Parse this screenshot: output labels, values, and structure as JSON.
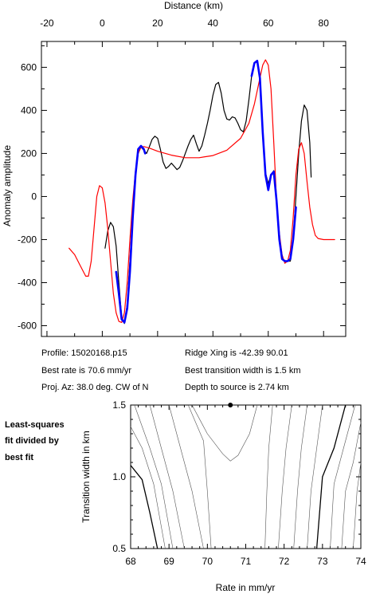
{
  "chart_data": [
    {
      "type": "line",
      "xlabel": "Distance (km)",
      "ylabel": "Anomaly amplitude",
      "xlim": [
        -22,
        88
      ],
      "ylim": [
        -650,
        720
      ],
      "x_ticks": [
        -20,
        0,
        20,
        40,
        60,
        80
      ],
      "y_ticks": [
        -600,
        -400,
        -200,
        0,
        200,
        400,
        600
      ],
      "x_axis_position": "top",
      "grid": false,
      "series": [
        {
          "color": "#000000",
          "points": [
            [
              1,
              -240
            ],
            [
              2,
              -160
            ],
            [
              3,
              -120
            ],
            [
              4,
              -140
            ],
            [
              5,
              -230
            ],
            [
              6,
              -400
            ],
            [
              7,
              -560
            ],
            [
              8,
              -590
            ],
            [
              9,
              -500
            ],
            [
              10,
              -300
            ],
            [
              11,
              -80
            ],
            [
              12,
              100
            ],
            [
              13,
              200
            ],
            [
              14,
              230
            ],
            [
              15,
              215
            ],
            [
              16,
              200
            ],
            [
              17,
              230
            ],
            [
              18,
              265
            ],
            [
              19,
              280
            ],
            [
              20,
              270
            ],
            [
              21,
              220
            ],
            [
              22,
              160
            ],
            [
              23,
              130
            ],
            [
              24,
              140
            ],
            [
              25,
              155
            ],
            [
              26,
              140
            ],
            [
              27,
              125
            ],
            [
              28,
              135
            ],
            [
              29,
              165
            ],
            [
              30,
              200
            ],
            [
              31,
              235
            ],
            [
              32,
              265
            ],
            [
              33,
              285
            ],
            [
              34,
              245
            ],
            [
              35,
              210
            ],
            [
              36,
              235
            ],
            [
              37,
              285
            ],
            [
              38,
              340
            ],
            [
              39,
              400
            ],
            [
              40,
              470
            ],
            [
              41,
              520
            ],
            [
              42,
              530
            ],
            [
              43,
              480
            ],
            [
              44,
              400
            ],
            [
              45,
              360
            ],
            [
              46,
              355
            ],
            [
              47,
              370
            ],
            [
              48,
              365
            ],
            [
              49,
              340
            ],
            [
              50,
              310
            ],
            [
              51,
              300
            ],
            [
              52,
              350
            ],
            [
              53,
              450
            ],
            [
              54,
              560
            ],
            [
              55,
              620
            ],
            [
              56,
              630
            ],
            [
              57,
              560
            ],
            [
              58,
              300
            ],
            [
              59,
              110
            ],
            [
              60,
              60
            ],
            [
              61,
              100
            ],
            [
              62,
              120
            ],
            [
              63,
              -20
            ],
            [
              64,
              -200
            ],
            [
              65,
              -290
            ],
            [
              66,
              -300
            ],
            [
              67,
              -300
            ],
            [
              68,
              -300
            ],
            [
              69,
              -200
            ],
            [
              70,
              0
            ],
            [
              71,
              200
            ],
            [
              72,
              350
            ],
            [
              73,
              425
            ],
            [
              74,
              400
            ],
            [
              75,
              250
            ],
            [
              75.5,
              90
            ]
          ]
        },
        {
          "color": "#ff0000",
          "points": [
            [
              -12,
              -240
            ],
            [
              -10,
              -270
            ],
            [
              -8,
              -320
            ],
            [
              -6,
              -370
            ],
            [
              -5,
              -370
            ],
            [
              -4,
              -300
            ],
            [
              -3,
              -150
            ],
            [
              -2,
              0
            ],
            [
              -1,
              50
            ],
            [
              0,
              40
            ],
            [
              1,
              -30
            ],
            [
              2,
              -150
            ],
            [
              3,
              -300
            ],
            [
              4,
              -450
            ],
            [
              5,
              -540
            ],
            [
              6,
              -580
            ],
            [
              7,
              -585
            ],
            [
              8,
              -540
            ],
            [
              9,
              -400
            ],
            [
              10,
              -200
            ],
            [
              11,
              -20
            ],
            [
              12,
              120
            ],
            [
              13,
              200
            ],
            [
              14,
              230
            ],
            [
              15,
              232
            ],
            [
              17,
              225
            ],
            [
              20,
              210
            ],
            [
              25,
              192
            ],
            [
              30,
              180
            ],
            [
              35,
              180
            ],
            [
              40,
              190
            ],
            [
              45,
              215
            ],
            [
              50,
              270
            ],
            [
              53,
              340
            ],
            [
              55,
              430
            ],
            [
              57,
              550
            ],
            [
              58,
              610
            ],
            [
              59,
              635
            ],
            [
              60,
              610
            ],
            [
              61,
              500
            ],
            [
              62,
              250
            ],
            [
              63,
              -20
            ],
            [
              64,
              -170
            ],
            [
              65,
              -270
            ],
            [
              66,
              -310
            ],
            [
              67,
              -300
            ],
            [
              68,
              -250
            ],
            [
              69,
              -100
            ],
            [
              70,
              100
            ],
            [
              71,
              220
            ],
            [
              72,
              250
            ],
            [
              73,
              200
            ],
            [
              74,
              70
            ],
            [
              75,
              -50
            ],
            [
              76,
              -130
            ],
            [
              77,
              -180
            ],
            [
              78,
              -195
            ],
            [
              80,
              -200
            ],
            [
              84,
              -200
            ]
          ]
        },
        {
          "color": "#0000ff",
          "points": [
            [
              5,
              -350
            ],
            [
              6,
              -450
            ],
            [
              7,
              -570
            ],
            [
              8,
              -585
            ],
            [
              9,
              -520
            ],
            [
              10,
              -350
            ],
            [
              11,
              -100
            ],
            [
              12,
              100
            ],
            [
              13,
              220
            ],
            [
              14,
              235
            ],
            [
              15,
              220
            ],
            [
              15.5,
              200
            ]
          ]
        },
        {
          "color": "#0000ff",
          "points": [
            [
              54,
              560
            ],
            [
              55,
              620
            ],
            [
              56,
              630
            ],
            [
              57,
              550
            ],
            [
              58,
              300
            ],
            [
              59,
              100
            ],
            [
              60,
              30
            ],
            [
              61,
              100
            ],
            [
              62,
              115
            ],
            [
              63,
              -20
            ],
            [
              64,
              -200
            ],
            [
              65,
              -290
            ],
            [
              66,
              -300
            ],
            [
              67,
              -300
            ],
            [
              68,
              -290
            ],
            [
              69,
              -200
            ],
            [
              70,
              -50
            ]
          ]
        }
      ]
    },
    {
      "type": "contour",
      "xlabel": "Rate in mm/yr",
      "ylabel": "Transition width in km",
      "xlim": [
        68,
        74
      ],
      "ylim": [
        0.5,
        1.5
      ],
      "x_ticks": [
        68,
        69,
        70,
        71,
        72,
        73,
        74
      ],
      "y_ticks": [
        0.5,
        1.0,
        1.5
      ],
      "y_tick_labels": [
        "0.5",
        "1.0",
        "1.5"
      ],
      "best_fit_marker": [
        70.6,
        1.5
      ],
      "contours": [
        {
          "weight": "bold",
          "points": [
            [
              68.0,
              1.08
            ],
            [
              68.3,
              0.98
            ],
            [
              68.5,
              0.75
            ],
            [
              68.7,
              0.5
            ]
          ]
        },
        {
          "weight": "thin",
          "points": [
            [
              68.0,
              1.35
            ],
            [
              68.3,
              1.2
            ],
            [
              68.6,
              0.95
            ],
            [
              68.9,
              0.5
            ]
          ]
        },
        {
          "weight": "thin",
          "points": [
            [
              68.1,
              1.5
            ],
            [
              68.5,
              1.2
            ],
            [
              68.8,
              0.95
            ],
            [
              69.1,
              0.5
            ]
          ]
        },
        {
          "weight": "thin",
          "points": [
            [
              68.5,
              1.5
            ],
            [
              68.8,
              1.2
            ],
            [
              69.1,
              0.9
            ],
            [
              69.4,
              0.5
            ]
          ]
        },
        {
          "weight": "thin",
          "points": [
            [
              69.0,
              1.5
            ],
            [
              69.3,
              1.2
            ],
            [
              69.6,
              0.9
            ],
            [
              69.9,
              0.5
            ]
          ]
        },
        {
          "weight": "thin",
          "points": [
            [
              69.5,
              1.5
            ],
            [
              69.9,
              1.25
            ],
            [
              70.0,
              0.9
            ],
            [
              70.1,
              0.5
            ]
          ]
        },
        {
          "weight": "thin",
          "points": [
            [
              69.6,
              1.5
            ],
            [
              70.0,
              1.3
            ],
            [
              70.4,
              1.16
            ],
            [
              70.6,
              1.11
            ],
            [
              70.8,
              1.15
            ],
            [
              71.1,
              1.3
            ],
            [
              71.3,
              1.5
            ]
          ]
        },
        {
          "weight": "thin",
          "points": [
            [
              71.7,
              1.5
            ],
            [
              71.6,
              1.2
            ],
            [
              71.55,
              0.9
            ],
            [
              71.5,
              0.5
            ]
          ]
        },
        {
          "weight": "thin",
          "points": [
            [
              72.2,
              1.5
            ],
            [
              72.05,
              1.2
            ],
            [
              71.95,
              0.9
            ],
            [
              71.85,
              0.5
            ]
          ]
        },
        {
          "weight": "thin",
          "points": [
            [
              72.6,
              1.5
            ],
            [
              72.45,
              1.2
            ],
            [
              72.35,
              0.9
            ],
            [
              72.25,
              0.5
            ]
          ]
        },
        {
          "weight": "thin",
          "points": [
            [
              73.0,
              1.5
            ],
            [
              72.85,
              1.2
            ],
            [
              72.7,
              0.9
            ],
            [
              72.6,
              0.5
            ]
          ]
        },
        {
          "weight": "bold",
          "points": [
            [
              73.6,
              1.5
            ],
            [
              73.3,
              1.2
            ],
            [
              73.0,
              1.0
            ],
            [
              72.85,
              0.5
            ]
          ]
        },
        {
          "weight": "thin",
          "points": [
            [
              73.85,
              1.5
            ],
            [
              73.55,
              1.2
            ],
            [
              73.3,
              0.95
            ],
            [
              73.2,
              0.5
            ]
          ]
        },
        {
          "weight": "thin",
          "points": [
            [
              74.0,
              1.38
            ],
            [
              73.8,
              1.1
            ],
            [
              73.6,
              0.9
            ],
            [
              73.5,
              0.5
            ]
          ]
        },
        {
          "weight": "thin",
          "points": [
            [
              74.0,
              1.1
            ],
            [
              73.9,
              0.9
            ],
            [
              73.8,
              0.5
            ]
          ]
        }
      ]
    }
  ],
  "info": {
    "profile": "Profile: 15020168.p15",
    "best_rate": "Best rate is 70.6 mm/yr",
    "proj_az": "Proj. Az: 38.0 deg. CW of N",
    "ridge_xing": "Ridge Xing is -42.39 90.01",
    "best_transition": "Best transition width is 1.5 km",
    "depth": "Depth to source is   2.74 km"
  },
  "side_note": {
    "line1": "Least-squares",
    "line2": "fit divided by",
    "line3": "best fit"
  }
}
